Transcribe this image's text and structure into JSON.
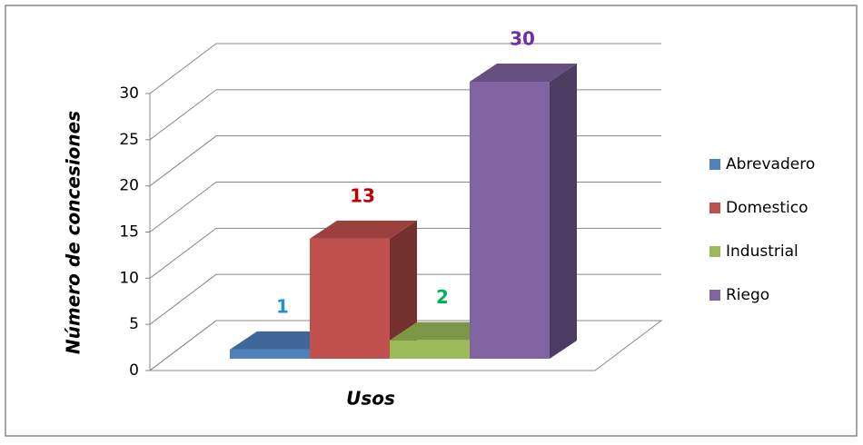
{
  "chart_data": {
    "type": "bar3d",
    "y_label": "Número de concesiones",
    "x_label": "Usos",
    "ylim": [
      0,
      30
    ],
    "yticks": [
      0,
      5,
      10,
      15,
      20,
      25,
      30
    ],
    "grid": true,
    "legend": "right",
    "series": [
      {
        "name": "Abrevadero",
        "color": "#4f81bd",
        "label_color": "#1f8fd6",
        "values": [
          1
        ]
      },
      {
        "name": "Domestico",
        "color": "#c0504d",
        "label_color": "#c00000",
        "values": [
          13
        ]
      },
      {
        "name": "Industrial",
        "color": "#9bbb59",
        "label_color": "#00b050",
        "values": [
          2
        ]
      },
      {
        "name": "Riego",
        "color": "#8064a2",
        "label_color": "#7030a0",
        "values": [
          30
        ]
      }
    ]
  }
}
